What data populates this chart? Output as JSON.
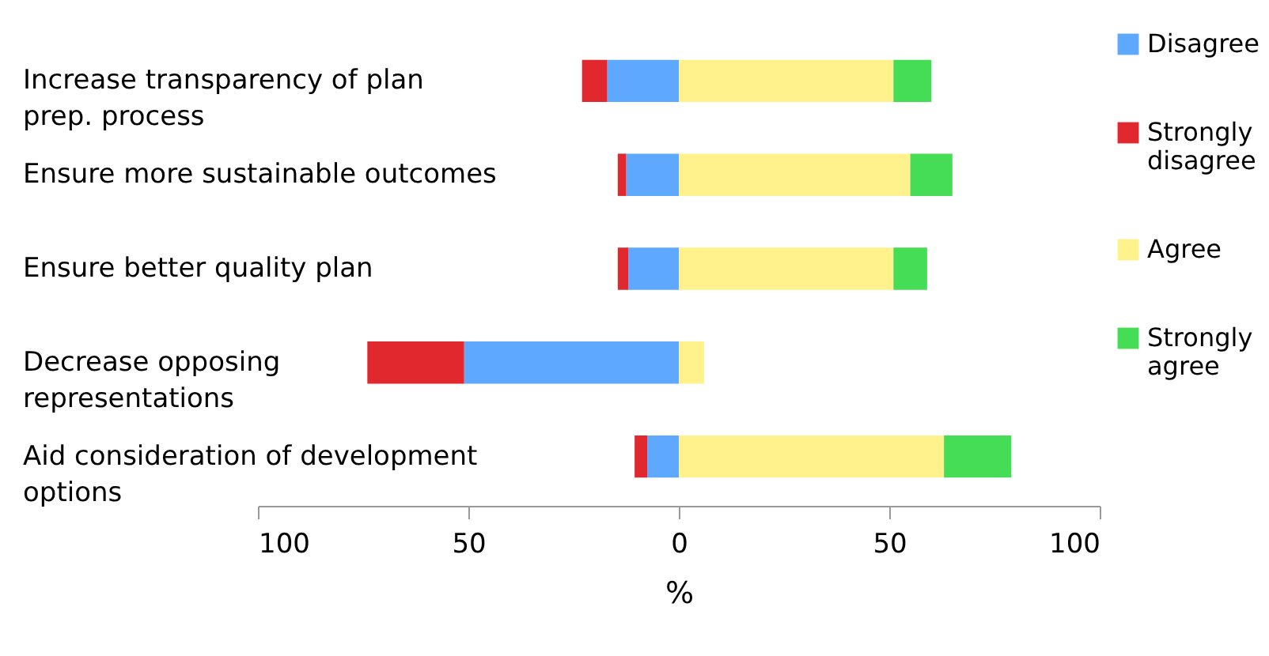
{
  "chart_data": {
    "type": "bar",
    "orientation": "horizontal",
    "stacked": true,
    "xlabel": "%",
    "categories": [
      "Increase transparency of plan prep. process",
      "Ensure more sustainable outcomes",
      "Ensure better quality plan",
      "Decrease opposing representations",
      "Aid consideration of development options"
    ],
    "series": [
      {
        "name": "Disagree",
        "color": "#5fa8ff",
        "values": [
          -17,
          -12.5,
          -12,
          -51,
          -7.5
        ]
      },
      {
        "name": "Strongly disagree",
        "color": "#e0282e",
        "values": [
          -6,
          -2,
          -2.5,
          -23,
          -3
        ]
      },
      {
        "name": "Agree",
        "color": "#fff28c",
        "values": [
          51,
          55,
          51,
          6,
          63
        ]
      },
      {
        "name": "Strongly agree",
        "color": "#44dd55",
        "values": [
          9,
          10,
          8,
          0,
          16
        ]
      }
    ],
    "xlim": [
      -100,
      100
    ],
    "xticks": [
      {
        "value": -100,
        "label": "100"
      },
      {
        "value": -50,
        "label": "50"
      },
      0,
      50,
      100
    ],
    "grid": false,
    "legend": "right"
  }
}
